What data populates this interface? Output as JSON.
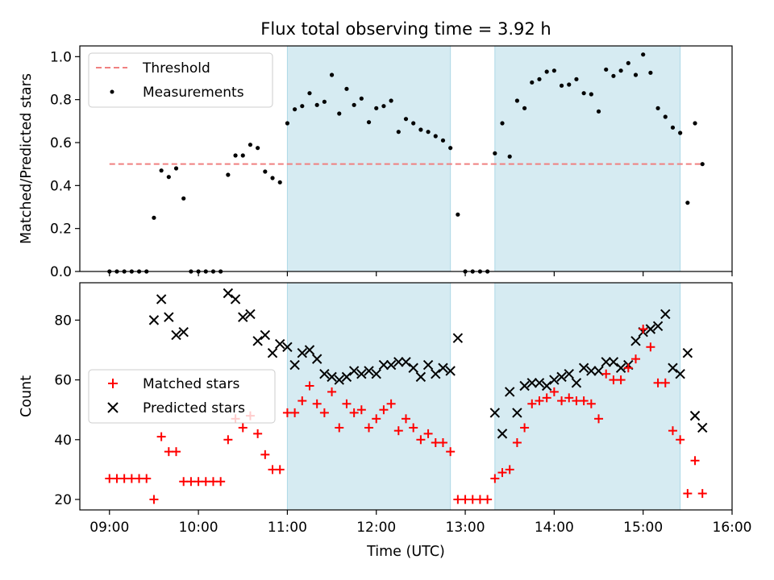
{
  "chart_data": [
    {
      "type": "scatter",
      "title": "Flux total observing time = 3.92 h",
      "xlabel": "",
      "ylabel": "Matched/Predicted stars",
      "xlim": [
        "08:40",
        "16:00"
      ],
      "ylim": [
        0,
        1.05
      ],
      "yticks": [
        0.0,
        0.2,
        0.4,
        0.6,
        0.8,
        1.0
      ],
      "ytick_labels": [
        "0.0",
        "0.2",
        "0.4",
        "0.6",
        "0.8",
        "1.0"
      ],
      "legend": {
        "placement": "top-left",
        "entries": [
          "Threshold",
          "Measurements"
        ]
      },
      "observing_windows": [
        [
          "11:00",
          "12:50"
        ],
        [
          "13:20",
          "15:25"
        ]
      ],
      "threshold": {
        "name": "Threshold",
        "value": 0.5,
        "color": "#f08080",
        "style": "dashed"
      },
      "series": [
        {
          "name": "Measurements",
          "color": "#000000",
          "marker": "dot",
          "points": [
            [
              "09:00",
              0
            ],
            [
              "09:05",
              0
            ],
            [
              "09:10",
              0
            ],
            [
              "09:15",
              0
            ],
            [
              "09:20",
              0
            ],
            [
              "09:25",
              0
            ],
            [
              "09:30",
              0.25
            ],
            [
              "09:35",
              0.47
            ],
            [
              "09:40",
              0.44
            ],
            [
              "09:45",
              0.48
            ],
            [
              "09:50",
              0.34
            ],
            [
              "09:55",
              0
            ],
            [
              "10:00",
              0
            ],
            [
              "10:05",
              0
            ],
            [
              "10:10",
              0
            ],
            [
              "10:15",
              0
            ],
            [
              "10:20",
              0.45
            ],
            [
              "10:25",
              0.54
            ],
            [
              "10:30",
              0.54
            ],
            [
              "10:35",
              0.59
            ],
            [
              "10:40",
              0.575
            ],
            [
              "10:45",
              0.465
            ],
            [
              "10:50",
              0.435
            ],
            [
              "10:55",
              0.415
            ],
            [
              "11:00",
              0.69
            ],
            [
              "11:05",
              0.755
            ],
            [
              "11:10",
              0.77
            ],
            [
              "11:15",
              0.83
            ],
            [
              "11:20",
              0.775
            ],
            [
              "11:25",
              0.79
            ],
            [
              "11:30",
              0.915
            ],
            [
              "11:35",
              0.735
            ],
            [
              "11:40",
              0.85
            ],
            [
              "11:45",
              0.775
            ],
            [
              "11:50",
              0.805
            ],
            [
              "11:55",
              0.695
            ],
            [
              "12:00",
              0.76
            ],
            [
              "12:05",
              0.77
            ],
            [
              "12:10",
              0.795
            ],
            [
              "12:15",
              0.65
            ],
            [
              "12:20",
              0.71
            ],
            [
              "12:25",
              0.69
            ],
            [
              "12:30",
              0.66
            ],
            [
              "12:35",
              0.65
            ],
            [
              "12:40",
              0.63
            ],
            [
              "12:45",
              0.61
            ],
            [
              "12:50",
              0.575
            ],
            [
              "12:55",
              0.265
            ],
            [
              "13:00",
              0
            ],
            [
              "13:05",
              0
            ],
            [
              "13:10",
              0
            ],
            [
              "13:15",
              0
            ],
            [
              "13:20",
              0.55
            ],
            [
              "13:25",
              0.69
            ],
            [
              "13:30",
              0.535
            ],
            [
              "13:35",
              0.795
            ],
            [
              "13:40",
              0.76
            ],
            [
              "13:45",
              0.88
            ],
            [
              "13:50",
              0.895
            ],
            [
              "13:55",
              0.93
            ],
            [
              "14:00",
              0.935
            ],
            [
              "14:05",
              0.865
            ],
            [
              "14:10",
              0.87
            ],
            [
              "14:15",
              0.895
            ],
            [
              "14:20",
              0.83
            ],
            [
              "14:25",
              0.825
            ],
            [
              "14:30",
              0.745
            ],
            [
              "14:35",
              0.94
            ],
            [
              "14:40",
              0.91
            ],
            [
              "14:45",
              0.935
            ],
            [
              "14:50",
              0.97
            ],
            [
              "14:55",
              0.915
            ],
            [
              "15:00",
              1.01
            ],
            [
              "15:05",
              0.925
            ],
            [
              "15:10",
              0.76
            ],
            [
              "15:15",
              0.72
            ],
            [
              "15:20",
              0.67
            ],
            [
              "15:25",
              0.645
            ],
            [
              "15:30",
              0.32
            ],
            [
              "15:35",
              0.69
            ],
            [
              "15:40",
              0.5
            ]
          ]
        }
      ]
    },
    {
      "type": "scatter",
      "title": "",
      "xlabel": "Time (UTC)",
      "ylabel": "Count",
      "xlim": [
        "08:40",
        "16:00"
      ],
      "ylim": [
        16.5,
        92.5
      ],
      "xticks": [
        "09:00",
        "10:00",
        "11:00",
        "12:00",
        "13:00",
        "14:00",
        "15:00",
        "16:00"
      ],
      "yticks": [
        20,
        40,
        60,
        80
      ],
      "ytick_labels": [
        "20",
        "40",
        "60",
        "80"
      ],
      "legend": {
        "placement": "center-left",
        "entries": [
          "Matched stars",
          "Predicted stars"
        ]
      },
      "observing_windows": [
        [
          "11:00",
          "12:50"
        ],
        [
          "13:20",
          "15:25"
        ]
      ],
      "series": [
        {
          "name": "Matched stars",
          "color": "#ff0000",
          "marker": "plus",
          "points": [
            [
              "09:00",
              27
            ],
            [
              "09:05",
              27
            ],
            [
              "09:10",
              27
            ],
            [
              "09:15",
              27
            ],
            [
              "09:20",
              27
            ],
            [
              "09:25",
              27
            ],
            [
              "09:30",
              20
            ],
            [
              "09:35",
              41
            ],
            [
              "09:40",
              36
            ],
            [
              "09:45",
              36
            ],
            [
              "09:50",
              26
            ],
            [
              "09:55",
              26
            ],
            [
              "10:00",
              26
            ],
            [
              "10:05",
              26
            ],
            [
              "10:10",
              26
            ],
            [
              "10:15",
              26
            ],
            [
              "10:20",
              40
            ],
            [
              "10:25",
              47
            ],
            [
              "10:30",
              44
            ],
            [
              "10:35",
              48
            ],
            [
              "10:40",
              42
            ],
            [
              "10:45",
              35
            ],
            [
              "10:50",
              30
            ],
            [
              "10:55",
              30
            ],
            [
              "11:00",
              49
            ],
            [
              "11:05",
              49
            ],
            [
              "11:10",
              53
            ],
            [
              "11:15",
              58
            ],
            [
              "11:20",
              52
            ],
            [
              "11:25",
              49
            ],
            [
              "11:30",
              56
            ],
            [
              "11:35",
              44
            ],
            [
              "11:40",
              52
            ],
            [
              "11:45",
              49
            ],
            [
              "11:50",
              50
            ],
            [
              "11:55",
              44
            ],
            [
              "12:00",
              47
            ],
            [
              "12:05",
              50
            ],
            [
              "12:10",
              52
            ],
            [
              "12:15",
              43
            ],
            [
              "12:20",
              47
            ],
            [
              "12:25",
              44
            ],
            [
              "12:30",
              40
            ],
            [
              "12:35",
              42
            ],
            [
              "12:40",
              39
            ],
            [
              "12:45",
              39
            ],
            [
              "12:50",
              36
            ],
            [
              "12:55",
              20
            ],
            [
              "13:00",
              20
            ],
            [
              "13:05",
              20
            ],
            [
              "13:10",
              20
            ],
            [
              "13:15",
              20
            ],
            [
              "13:20",
              27
            ],
            [
              "13:25",
              29
            ],
            [
              "13:30",
              30
            ],
            [
              "13:35",
              39
            ],
            [
              "13:40",
              44
            ],
            [
              "13:45",
              52
            ],
            [
              "13:50",
              53
            ],
            [
              "13:55",
              54
            ],
            [
              "14:00",
              56
            ],
            [
              "14:05",
              53
            ],
            [
              "14:10",
              54
            ],
            [
              "14:15",
              53
            ],
            [
              "14:20",
              53
            ],
            [
              "14:25",
              52
            ],
            [
              "14:30",
              47
            ],
            [
              "14:35",
              62
            ],
            [
              "14:40",
              60
            ],
            [
              "14:45",
              60
            ],
            [
              "14:50",
              64
            ],
            [
              "14:55",
              67
            ],
            [
              "15:00",
              77
            ],
            [
              "15:05",
              71
            ],
            [
              "15:10",
              59
            ],
            [
              "15:15",
              59
            ],
            [
              "15:20",
              43
            ],
            [
              "15:25",
              40
            ],
            [
              "15:30",
              22
            ],
            [
              "15:35",
              33
            ],
            [
              "15:40",
              22
            ]
          ]
        },
        {
          "name": "Predicted stars",
          "color": "#000000",
          "marker": "x",
          "points": [
            [
              "09:30",
              80
            ],
            [
              "09:35",
              87
            ],
            [
              "09:40",
              81
            ],
            [
              "09:45",
              75
            ],
            [
              "09:50",
              76
            ],
            [
              "10:20",
              89
            ],
            [
              "10:25",
              87
            ],
            [
              "10:30",
              81
            ],
            [
              "10:35",
              82
            ],
            [
              "10:40",
              73
            ],
            [
              "10:45",
              75
            ],
            [
              "10:50",
              69
            ],
            [
              "10:55",
              72
            ],
            [
              "11:00",
              71
            ],
            [
              "11:05",
              65
            ],
            [
              "11:10",
              69
            ],
            [
              "11:15",
              70
            ],
            [
              "11:20",
              67
            ],
            [
              "11:25",
              62
            ],
            [
              "11:30",
              61
            ],
            [
              "11:35",
              60
            ],
            [
              "11:40",
              61
            ],
            [
              "11:45",
              63
            ],
            [
              "11:50",
              62
            ],
            [
              "11:55",
              63
            ],
            [
              "12:00",
              62
            ],
            [
              "12:05",
              65
            ],
            [
              "12:10",
              65
            ],
            [
              "12:15",
              66
            ],
            [
              "12:20",
              66
            ],
            [
              "12:25",
              64
            ],
            [
              "12:30",
              61
            ],
            [
              "12:35",
              65
            ],
            [
              "12:40",
              62
            ],
            [
              "12:45",
              64
            ],
            [
              "12:50",
              63
            ],
            [
              "12:55",
              74
            ],
            [
              "13:20",
              49
            ],
            [
              "13:25",
              42
            ],
            [
              "13:30",
              56
            ],
            [
              "13:35",
              49
            ],
            [
              "13:40",
              58
            ],
            [
              "13:45",
              59
            ],
            [
              "13:50",
              59
            ],
            [
              "13:55",
              58
            ],
            [
              "14:00",
              60
            ],
            [
              "14:05",
              61
            ],
            [
              "14:10",
              62
            ],
            [
              "14:15",
              59
            ],
            [
              "14:20",
              64
            ],
            [
              "14:25",
              63
            ],
            [
              "14:30",
              63
            ],
            [
              "14:35",
              66
            ],
            [
              "14:40",
              66
            ],
            [
              "14:45",
              64
            ],
            [
              "14:50",
              65
            ],
            [
              "14:55",
              73
            ],
            [
              "15:00",
              76
            ],
            [
              "15:05",
              77
            ],
            [
              "15:10",
              78
            ],
            [
              "15:15",
              82
            ],
            [
              "15:20",
              64
            ],
            [
              "15:25",
              62
            ],
            [
              "15:30",
              69
            ],
            [
              "15:35",
              48
            ],
            [
              "15:40",
              44
            ]
          ]
        }
      ]
    }
  ],
  "colors": {
    "window_fill": "#add8e6",
    "threshold": "#f08080",
    "measurements": "#000000",
    "matched": "#ff0000",
    "predicted": "#000000"
  }
}
